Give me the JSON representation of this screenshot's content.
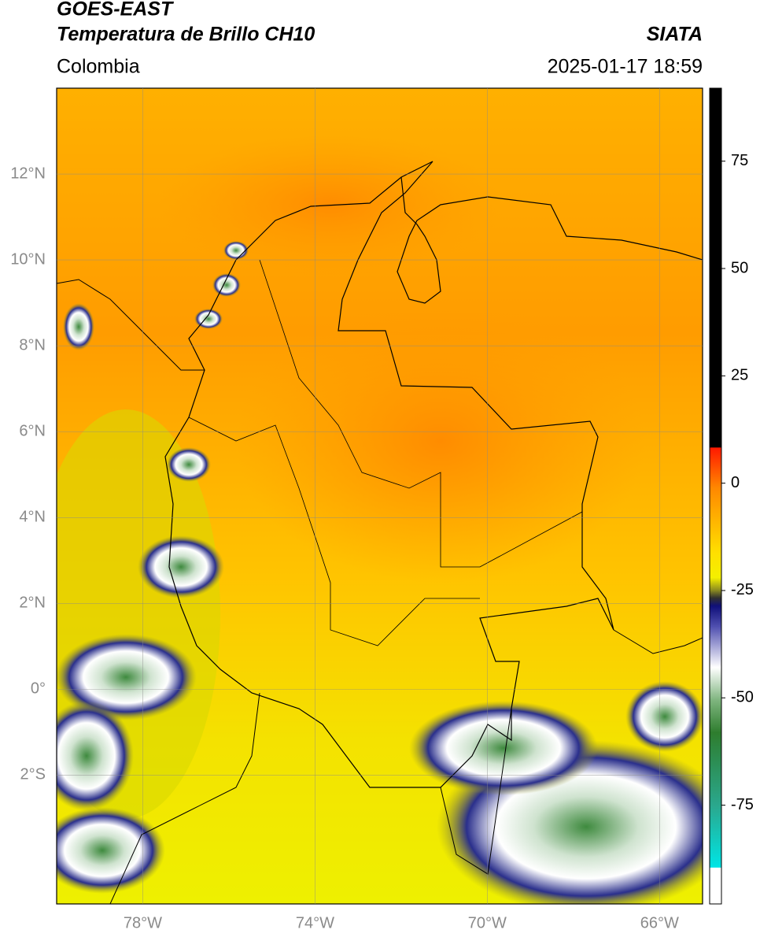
{
  "header": {
    "source": "GOES-EAST",
    "title": "Temperatura de Brillo CH10",
    "brand": "SIATA",
    "region": "Colombia",
    "datetime": "2025-01-17 18:59"
  },
  "map": {
    "xlim": [
      -80,
      -65
    ],
    "ylim": [
      -5,
      14
    ],
    "xticks": [
      {
        "value": -78,
        "label": "78°W"
      },
      {
        "value": -74,
        "label": "74°W"
      },
      {
        "value": -70,
        "label": "70°W"
      },
      {
        "value": -66,
        "label": "66°W"
      }
    ],
    "yticks": [
      {
        "value": 12,
        "label": "12°N"
      },
      {
        "value": 10,
        "label": "10°N"
      },
      {
        "value": 8,
        "label": "8°N"
      },
      {
        "value": 6,
        "label": "6°N"
      },
      {
        "value": 4,
        "label": "4°N"
      },
      {
        "value": 2,
        "label": "2°N"
      },
      {
        "value": 0,
        "label": "0°"
      },
      {
        "value": -2,
        "label": "2°S"
      }
    ],
    "grid": true
  },
  "colorbar": {
    "lim": [
      -98,
      92
    ],
    "ticks": [
      75,
      50,
      25,
      0,
      -25,
      -50,
      -75
    ]
  }
}
